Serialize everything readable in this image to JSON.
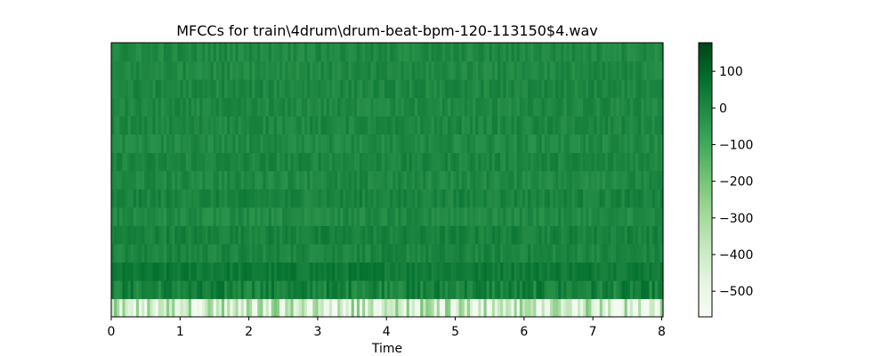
{
  "chart_data": {
    "type": "heatmap",
    "title": "MFCCs for train\\4drum\\drum-beat-bpm-120-113150$4.wav",
    "xlabel": "Time",
    "ylabel": "",
    "xlim": [
      0,
      8.02
    ],
    "x_ticks": [
      "0",
      "1",
      "2",
      "3",
      "4",
      "5",
      "6",
      "7",
      "8"
    ],
    "y_ticks": [],
    "n_coefficients": 15,
    "n_frames": 200,
    "colormap": "Greens",
    "colorbar": {
      "range": [
        -570,
        178
      ],
      "ticks": [
        "100",
        "0",
        "−100",
        "−200",
        "−300",
        "−400",
        "−500"
      ]
    },
    "row_mean_values": [
      -470,
      20,
      45,
      10,
      20,
      -5,
      15,
      0,
      10,
      -5,
      5,
      0,
      5,
      0,
      0
    ],
    "colors": {
      "high": "#00441b",
      "low": "#f7fcf5"
    }
  }
}
